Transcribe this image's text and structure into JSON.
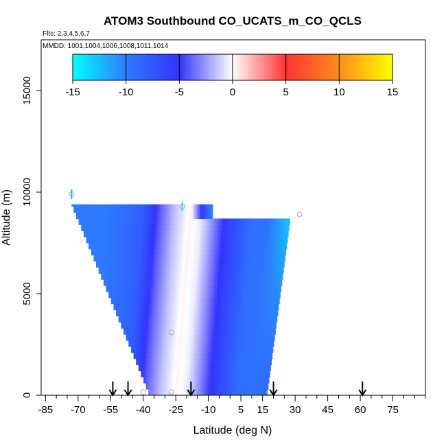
{
  "chart_data": {
    "type": "heatmap",
    "title": "ATOM3 Southbound CO_UCATS_m_CO_QCLS",
    "flights_label": "Flts: 2,3,4,5,6,7",
    "mmdd_label": "MMDD: 1001,1004,1006,1008,1011,1014",
    "xlabel": "Latitude (deg N)",
    "ylabel": "Altitude (m)",
    "xlim": [
      -87,
      90
    ],
    "ylim": [
      0,
      17500
    ],
    "x_ticks": [
      -85,
      -70,
      -55,
      -40,
      -25,
      -10,
      5,
      15,
      30,
      45,
      60,
      75
    ],
    "x_minor_step": 5,
    "y_ticks": [
      0,
      5000,
      10000,
      15000
    ],
    "colorbar": {
      "range": [
        -15,
        15
      ],
      "ticks": [
        -15,
        -10,
        -5,
        0,
        5,
        10,
        15
      ],
      "colors": [
        "#00ffff",
        "#2f7bff",
        "#3333ff",
        "#ffffff",
        "#ff3333",
        "#ff8c1a",
        "#ffff00"
      ]
    },
    "field": {
      "top_altitude_left": 9400,
      "top_altitude_right": 8900,
      "bottom_altitude": 0,
      "left_edge": [
        [
          0,
          -37
        ],
        [
          9400,
          -73
        ]
      ],
      "right_edge": [
        [
          0,
          17
        ],
        [
          8900,
          28
        ]
      ],
      "profile": [
        {
          "offset": -40,
          "value": -10
        },
        {
          "offset": -30,
          "value": -9
        },
        {
          "offset": -22,
          "value": -8
        },
        {
          "offset": -14,
          "value": -4
        },
        {
          "offset": -7,
          "value": -1.5
        },
        {
          "offset": 0,
          "value": 0.3
        },
        {
          "offset": 5,
          "value": -0.5
        },
        {
          "offset": 11,
          "value": -3
        },
        {
          "offset": 18,
          "value": -6
        },
        {
          "offset": 28,
          "value": -9
        },
        {
          "offset": 42,
          "value": -10
        },
        {
          "offset": 60,
          "value": -11
        }
      ],
      "center_line": [
        [
          0,
          -25
        ],
        [
          9400,
          -18
        ]
      ],
      "right_edge_values": [
        [
          0,
          -8
        ],
        [
          5000,
          -11
        ],
        [
          8900,
          -14
        ]
      ]
    },
    "markers": [
      {
        "lat": -73,
        "alt": 9900,
        "value": -12
      },
      {
        "lat": -22,
        "alt": 9300,
        "value": -14
      },
      {
        "lat": 32,
        "alt": 8900,
        "value": 0
      },
      {
        "lat": -27,
        "alt": 3100,
        "value": 0
      },
      {
        "lat": -27,
        "alt": 150,
        "value": 0
      },
      {
        "lat": -40,
        "alt": 150,
        "value": 0
      },
      {
        "lat": 18,
        "alt": 150,
        "value": 0
      }
    ],
    "arrows": [
      -54,
      -47,
      -18,
      20,
      61
    ]
  }
}
